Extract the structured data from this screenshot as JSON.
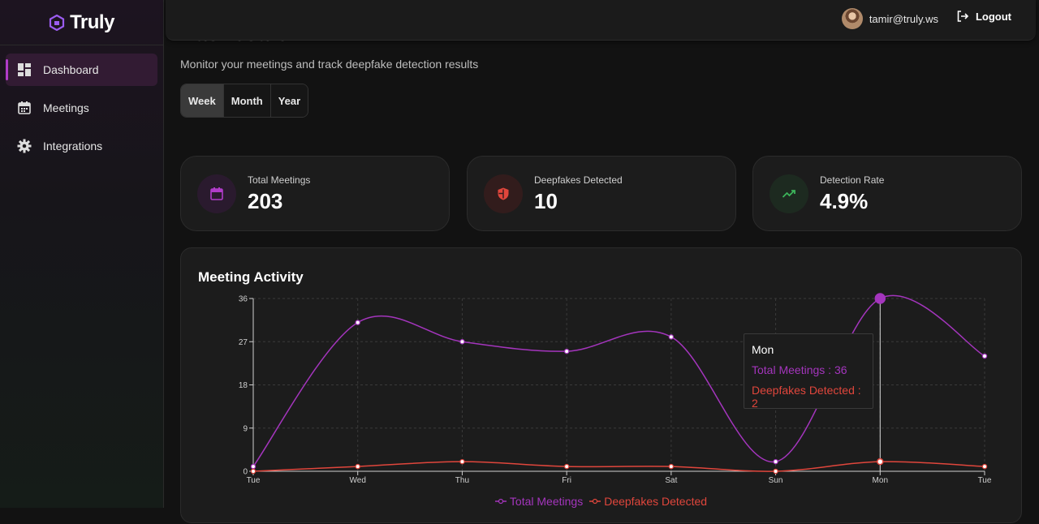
{
  "brand": {
    "name": "Truly"
  },
  "sidebar": {
    "items": [
      {
        "label": "Dashboard",
        "icon": "dashboard-icon",
        "active": true
      },
      {
        "label": "Meetings",
        "icon": "calendar-icon",
        "active": false
      },
      {
        "label": "Integrations",
        "icon": "gear-icon",
        "active": false
      }
    ]
  },
  "topbar": {
    "user_email": "tamir@truly.ws",
    "logout_label": "Logout"
  },
  "page": {
    "title": "Dashboard",
    "subtitle": "Monitor your meetings and track deepfake detection results",
    "ranges": [
      "Week",
      "Month",
      "Year"
    ],
    "active_range": "Week"
  },
  "stats": [
    {
      "label": "Total Meetings",
      "value": "203",
      "icon": "calendar-icon",
      "color": "#b03cc8"
    },
    {
      "label": "Deepfakes Detected",
      "value": "10",
      "icon": "shield-icon",
      "color": "#e0463c"
    },
    {
      "label": "Detection Rate",
      "value": "4.9%",
      "icon": "trending-up-icon",
      "color": "#3cb45a"
    }
  ],
  "chart": {
    "title": "Meeting Activity",
    "tooltip": {
      "title": "Mon",
      "total_text": "Total Meetings : 36",
      "deepfake_text": "Deepfakes Detected : 2"
    }
  },
  "chart_data": {
    "type": "line",
    "categories": [
      "Tue",
      "Wed",
      "Thu",
      "Fri",
      "Sat",
      "Sun",
      "Mon",
      "Tue"
    ],
    "series": [
      {
        "name": "Total Meetings",
        "color": "#a435bd",
        "values": [
          1,
          31,
          27,
          25,
          28,
          2,
          36,
          24
        ]
      },
      {
        "name": "Deepfakes Detected",
        "color": "#e0463c",
        "values": [
          0,
          1,
          2,
          1,
          1,
          0,
          2,
          1
        ]
      }
    ],
    "ylim": [
      0,
      36
    ],
    "yticks": [
      0,
      9,
      18,
      27,
      36
    ],
    "grid": true,
    "legend": "bottom-center",
    "highlight_index": 6
  }
}
